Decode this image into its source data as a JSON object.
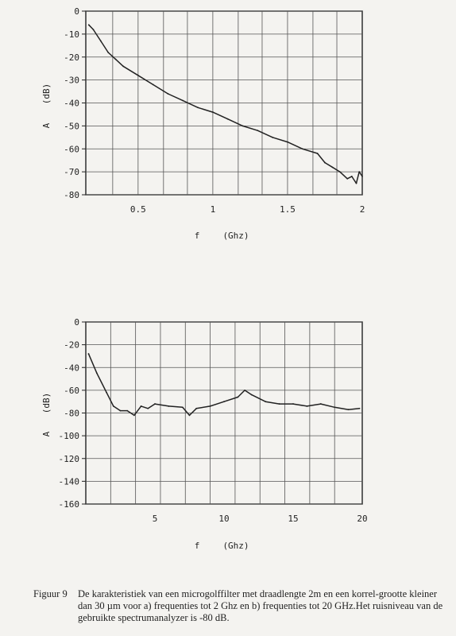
{
  "chart_data": [
    {
      "type": "line",
      "xlim": [
        0.15,
        2.0
      ],
      "ylim": [
        -80,
        0
      ],
      "xticks": [
        0.5,
        1,
        1.5,
        2
      ],
      "xtick_labels": [
        "0.5",
        "1",
        "1.5",
        "2"
      ],
      "yticks": [
        0,
        -10,
        -20,
        -30,
        -40,
        -50,
        -60,
        -70,
        -80
      ],
      "ytick_labels": [
        "0",
        "-10",
        "-20",
        "-30",
        "-40",
        "-50",
        "-60",
        "-70",
        "-80"
      ],
      "xlabel_symbol": "f",
      "xlabel_unit": "(Ghz)",
      "ylabel_symbol": "A",
      "ylabel_unit": "(dB)",
      "grid": true,
      "x": [
        0.17,
        0.2,
        0.25,
        0.3,
        0.35,
        0.4,
        0.5,
        0.6,
        0.7,
        0.8,
        0.9,
        1.0,
        1.1,
        1.2,
        1.3,
        1.4,
        1.5,
        1.6,
        1.7,
        1.75,
        1.8,
        1.85,
        1.9,
        1.93,
        1.96,
        1.98,
        2.0
      ],
      "y": [
        -6,
        -8,
        -13,
        -18,
        -21,
        -24,
        -28,
        -32,
        -36,
        -39,
        -42,
        -44,
        -47,
        -50,
        -52,
        -55,
        -57,
        -60,
        -62,
        -66,
        -68,
        -70,
        -73,
        -72,
        -75,
        -70,
        -72
      ]
    },
    {
      "type": "line",
      "xlim": [
        0,
        20
      ],
      "ylim": [
        -160,
        0
      ],
      "xticks": [
        5,
        10,
        15,
        20
      ],
      "xtick_labels": [
        "5",
        "10",
        "15",
        "20"
      ],
      "yticks": [
        0,
        -20,
        -40,
        -60,
        -80,
        -100,
        -120,
        -140,
        -160
      ],
      "ytick_labels": [
        "0",
        "-20",
        "-40",
        "-60",
        "-80",
        "-100",
        "-120",
        "-140",
        "-160"
      ],
      "xlabel_symbol": "f",
      "xlabel_unit": "(Ghz)",
      "ylabel_symbol": "A",
      "ylabel_unit": "(dB)",
      "grid": true,
      "x": [
        0.2,
        0.8,
        1.5,
        2.0,
        2.5,
        3.0,
        3.5,
        4.0,
        4.5,
        5.0,
        6.0,
        7.0,
        7.5,
        8.0,
        9.0,
        10.0,
        11.0,
        11.5,
        12.0,
        13.0,
        14.0,
        15.0,
        16.0,
        17.0,
        18.0,
        19.0,
        19.8
      ],
      "y": [
        -28,
        -45,
        -62,
        -74,
        -78,
        -78,
        -82,
        -74,
        -76,
        -72,
        -74,
        -75,
        -82,
        -76,
        -74,
        -70,
        -66,
        -60,
        -64,
        -70,
        -72,
        -72,
        -74,
        -72,
        -75,
        -77,
        -76
      ]
    }
  ],
  "caption": {
    "label": "Figuur 9",
    "text": "De karakteristiek van een microgolffilter met draadlengte 2m en een korrel-grootte kleiner dan 30 µm voor a) frequenties tot 2 Ghz en b) frequenties tot 20 GHz.Het ruisniveau van de gebruikte spectrumanalyzer is -80 dB."
  }
}
